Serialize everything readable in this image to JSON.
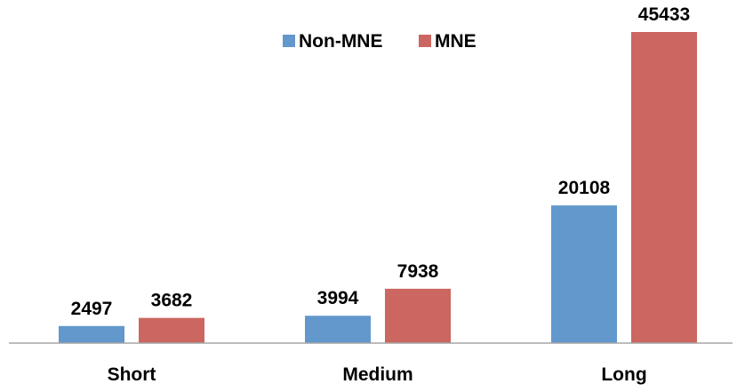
{
  "chart_data": {
    "type": "bar",
    "categories": [
      "Short",
      "Medium",
      "Long"
    ],
    "series": [
      {
        "name": "Non-MNE",
        "values": [
          2497,
          3994,
          20108
        ],
        "color": "#6298cc"
      },
      {
        "name": "MNE",
        "values": [
          3682,
          7938,
          45433
        ],
        "color": "#cb6661"
      }
    ],
    "ylim": [
      0,
      45433
    ],
    "grid": false,
    "legend": "top-center",
    "data_labels": true
  }
}
